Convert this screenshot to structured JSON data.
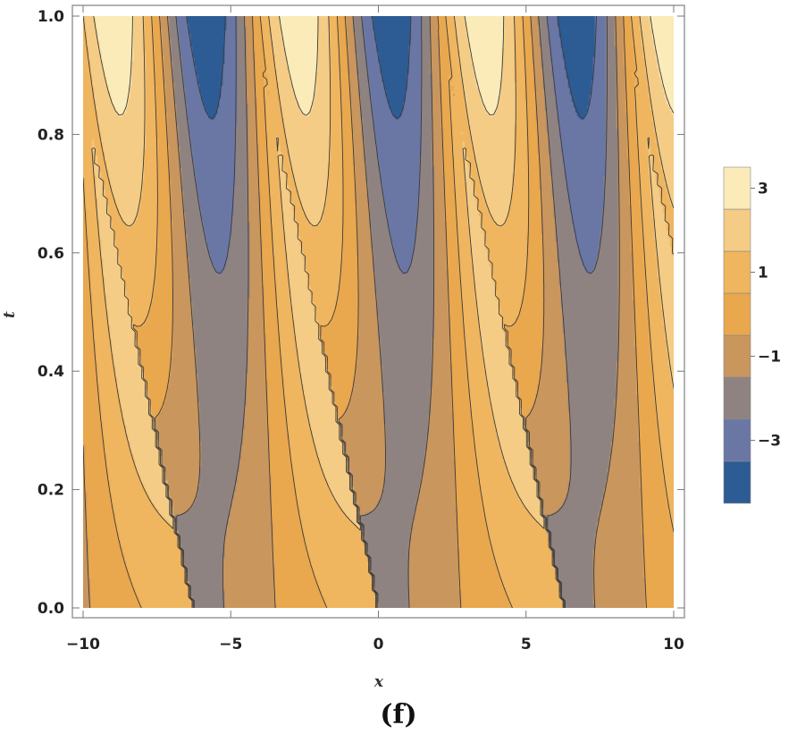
{
  "caption": "(f)",
  "chart_data": {
    "type": "heatmap",
    "subtype": "contour",
    "xlabel": "x",
    "ylabel": "t",
    "xlim": [
      -10,
      10
    ],
    "ylim": [
      0,
      1
    ],
    "x_ticks": [
      -10,
      -5,
      0,
      5,
      10
    ],
    "x_tick_labels": [
      "−10",
      "−5",
      "0",
      "5",
      "10"
    ],
    "y_ticks": [
      0.0,
      0.2,
      0.4,
      0.6,
      0.8,
      1.0
    ],
    "y_tick_labels": [
      "0.0",
      "0.2",
      "0.4",
      "0.6",
      "0.8",
      "1.0"
    ],
    "grid": false,
    "legend_position": "right",
    "levels": [
      -4,
      -3,
      -2,
      -1,
      0,
      1,
      2,
      3,
      4
    ],
    "level_colors": [
      "#2d5b94",
      "#6a77a5",
      "#8f8382",
      "#c9965e",
      "#e9a74e",
      "#efb55f",
      "#f4cc85",
      "#faebb9"
    ],
    "legend_tick_values": [
      3,
      1,
      -1,
      -3
    ],
    "legend_tick_labels": [
      "3",
      "1",
      "−1",
      "−3"
    ],
    "period_x": 6.2832,
    "contour_line_color": "#3a3a3a"
  }
}
